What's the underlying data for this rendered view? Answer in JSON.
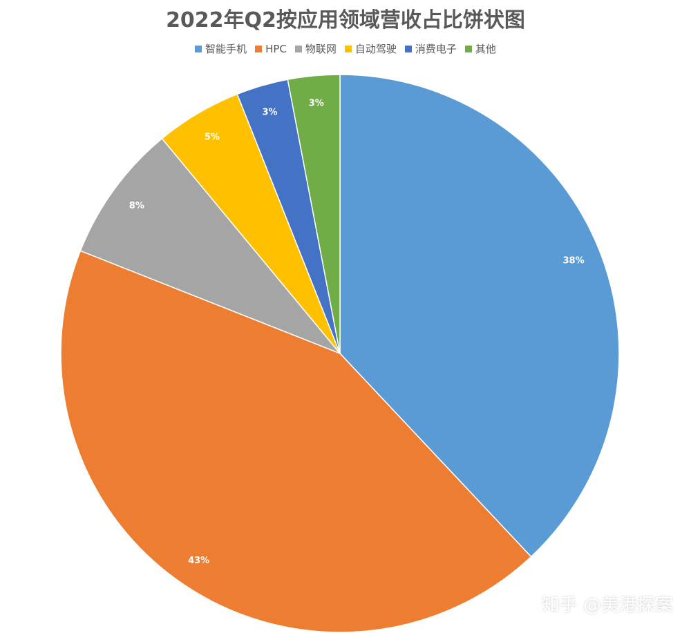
{
  "chart_data": {
    "type": "pie",
    "title": "2022年Q2按应用领域营收占比饼状图",
    "legend_position": "top",
    "categories": [
      "智能手机",
      "HPC",
      "物联网",
      "自动驾驶",
      "消费电子",
      "其他"
    ],
    "values": [
      38,
      43,
      8,
      5,
      3,
      3
    ],
    "value_labels": [
      "38%",
      "43%",
      "8%",
      "5%",
      "3%",
      "3%"
    ],
    "colors": [
      "#5B9BD5",
      "#ED7D31",
      "#A5A5A5",
      "#FFC000",
      "#4472C4",
      "#70AD47"
    ]
  },
  "watermark": "知乎 @美港探案"
}
